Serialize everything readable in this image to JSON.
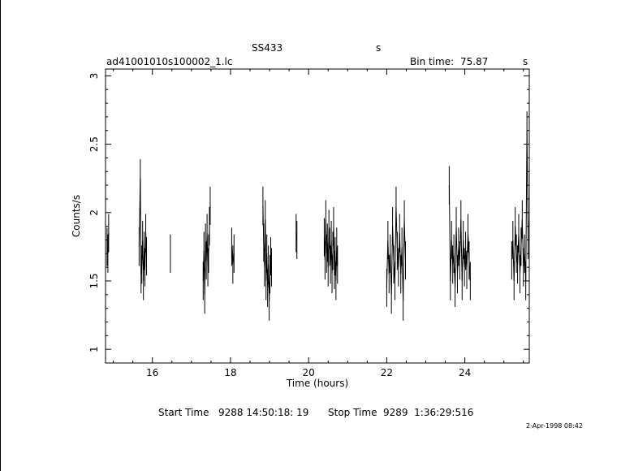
{
  "header": {
    "object": "SS433",
    "object_unit": "s",
    "filename": "ad41001010s100002_1.lc",
    "bin_time_label": "Bin time:",
    "bin_time_value": "75.87",
    "bin_time_unit": "s"
  },
  "footer": {
    "start_label": "Start Time",
    "start_value": "9288 14:50:18: 19",
    "stop_label": "Stop Time",
    "stop_value": "9289  1:36:29:516",
    "date_stamp": "2-Apr-1998 08:42"
  },
  "chart_data": {
    "type": "scatter",
    "title": "SS433",
    "xlabel": "Time (hours)",
    "ylabel": "Counts/s",
    "xlim": [
      14.8,
      25.65
    ],
    "ylim": [
      0.9,
      3.05
    ],
    "x_ticks": [
      "16",
      "18",
      "20",
      "22",
      "24"
    ],
    "y_ticks": [
      "1",
      "1.5",
      "2",
      "2.5",
      "3"
    ],
    "grid": false,
    "legend": "none",
    "segments": [
      {
        "x": [
          14.84,
          14.86,
          14.88
        ],
        "y": [
          1.75,
          1.7,
          1.85
        ]
      },
      {
        "x": [
          15.66,
          15.69,
          15.71,
          15.73,
          15.75,
          15.77,
          15.79,
          15.81,
          15.83,
          15.85
        ],
        "y": [
          1.75,
          2.25,
          1.55,
          1.62,
          1.8,
          1.5,
          1.72,
          1.6,
          1.85,
          1.68
        ]
      },
      {
        "x": [
          16.46
        ],
        "y": [
          1.7
        ]
      },
      {
        "x": [
          17.3,
          17.32,
          17.34,
          17.36,
          17.38,
          17.4,
          17.42,
          17.44,
          17.46,
          17.48
        ],
        "y": [
          1.5,
          1.72,
          1.4,
          1.78,
          1.65,
          1.85,
          1.6,
          1.7,
          1.9,
          2.05
        ]
      },
      {
        "x": [
          18.03,
          18.06,
          18.09
        ],
        "y": [
          1.75,
          1.62,
          1.7
        ]
      },
      {
        "x": [
          18.83,
          18.85,
          18.87,
          18.89,
          18.91,
          18.93,
          18.95,
          18.97,
          18.99,
          19.01,
          19.03,
          19.05
        ],
        "y": [
          2.05,
          1.78,
          1.6,
          1.95,
          1.5,
          1.7,
          1.45,
          1.62,
          1.35,
          1.55,
          1.68,
          1.6
        ]
      },
      {
        "x": [
          19.68,
          19.7
        ],
        "y": [
          1.85,
          1.8
        ]
      },
      {
        "x": [
          20.4,
          20.42,
          20.44,
          20.46,
          20.48,
          20.5,
          20.52,
          20.54,
          20.56,
          20.58,
          20.6,
          20.62,
          20.64,
          20.66,
          20.68,
          20.7,
          20.72,
          20.74
        ],
        "y": [
          1.82,
          1.65,
          1.95,
          1.7,
          1.78,
          1.6,
          1.88,
          1.75,
          1.62,
          1.8,
          1.55,
          1.72,
          1.9,
          1.58,
          1.68,
          1.5,
          1.75,
          1.62
        ]
      },
      {
        "x": [
          22.0,
          22.03,
          22.06,
          22.09,
          22.12,
          22.15,
          22.18,
          22.21,
          22.24,
          22.27,
          22.3,
          22.33,
          22.36,
          22.39,
          22.42,
          22.45,
          22.48
        ],
        "y": [
          1.45,
          1.8,
          1.55,
          1.7,
          1.4,
          1.9,
          1.62,
          1.5,
          2.05,
          1.72,
          1.6,
          1.85,
          1.55,
          1.75,
          1.35,
          1.95,
          1.65
        ]
      },
      {
        "x": [
          23.6,
          23.63,
          23.66,
          23.69,
          23.72,
          23.75,
          23.78,
          23.81,
          23.84,
          23.87,
          23.9,
          23.93,
          23.96,
          23.99,
          24.02,
          24.05,
          24.08,
          24.11,
          24.14
        ],
        "y": [
          2.2,
          1.5,
          1.8,
          1.62,
          1.7,
          1.45,
          1.9,
          1.55,
          1.75,
          1.65,
          1.95,
          1.5,
          1.8,
          1.6,
          1.72,
          1.58,
          1.85,
          1.65,
          1.5
        ]
      },
      {
        "x": [
          25.2,
          25.23,
          25.26,
          25.29,
          25.32,
          25.35,
          25.38,
          25.41,
          25.44,
          25.47,
          25.5,
          25.53,
          25.56,
          25.59,
          25.62
        ],
        "y": [
          1.65,
          1.8,
          1.5,
          1.9,
          1.7,
          1.62,
          1.85,
          1.55,
          1.75,
          1.95,
          1.6,
          1.7,
          1.5,
          2.6,
          1.8
        ]
      }
    ]
  }
}
